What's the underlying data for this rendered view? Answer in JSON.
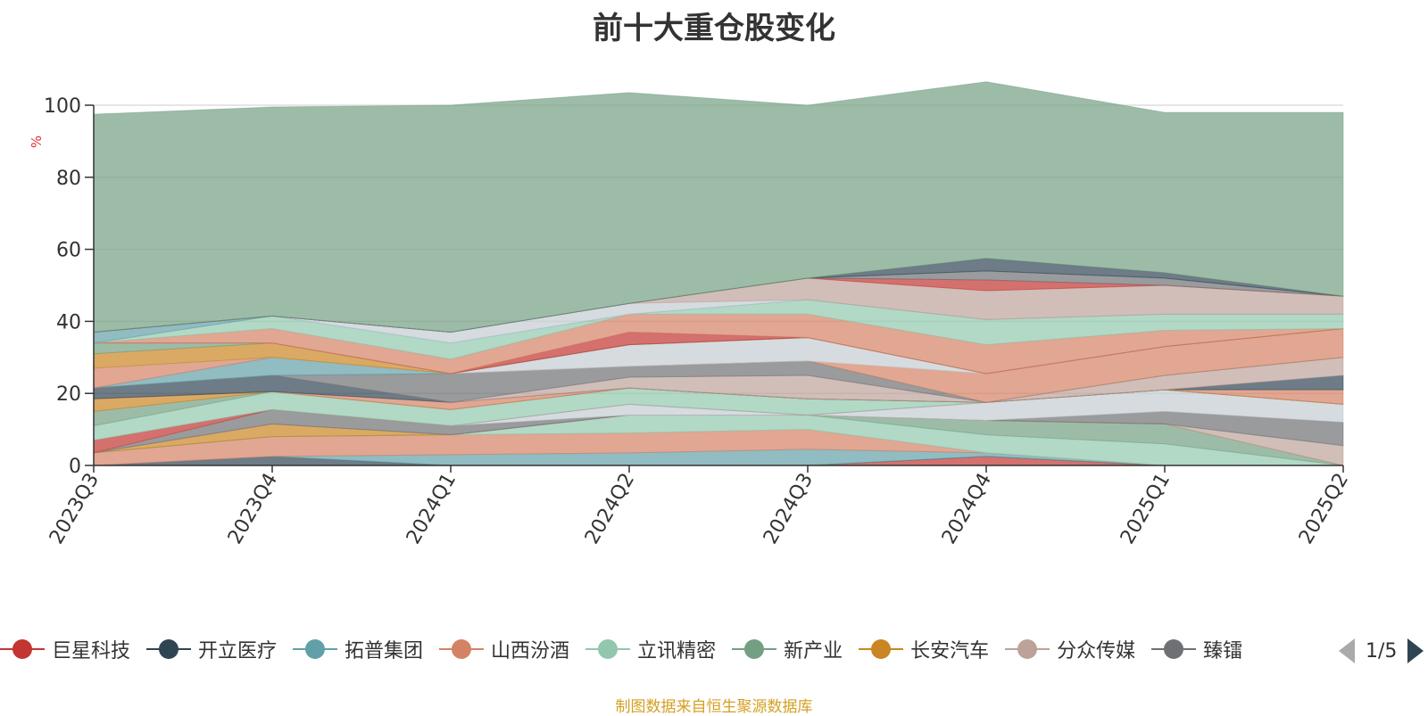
{
  "title": "前十大重仓股变化",
  "unit_label": "%",
  "footer": "制图数据来自恒生聚源数据库",
  "legend_page": "1/5",
  "legend": [
    {
      "name": "巨星科技",
      "color": "#c23531"
    },
    {
      "name": "开立医疗",
      "color": "#2f4554"
    },
    {
      "name": "拓普集团",
      "color": "#61a0a8"
    },
    {
      "name": "山西汾酒",
      "color": "#d48265"
    },
    {
      "name": "立讯精密",
      "color": "#91c7ae"
    },
    {
      "name": "新产业",
      "color": "#749f83"
    },
    {
      "name": "长安汽车",
      "color": "#ca8622"
    },
    {
      "name": "分众传媒",
      "color": "#bda29a"
    },
    {
      "name": "臻镭",
      "color": "#6e7074"
    }
  ],
  "chart_data": {
    "type": "area",
    "stacked": true,
    "x": [
      "2023Q3",
      "2023Q4",
      "2024Q1",
      "2024Q2",
      "2024Q3",
      "2024Q4",
      "2025Q1",
      "2025Q2"
    ],
    "ylim": [
      0,
      100
    ],
    "yticks": [
      0,
      20,
      40,
      60,
      80,
      100
    ],
    "grid": true,
    "series": [
      {
        "color": "#c23531",
        "values": [
          0,
          0,
          0,
          0,
          0,
          2.5,
          0,
          0
        ]
      },
      {
        "color": "#2f4554",
        "values": [
          0,
          2.5,
          0,
          0,
          0,
          0,
          0,
          0
        ]
      },
      {
        "color": "#61a0a8",
        "values": [
          0,
          0,
          3,
          3.5,
          4.5,
          1,
          0,
          0
        ]
      },
      {
        "color": "#d48265",
        "values": [
          3.5,
          5.5,
          5.5,
          5.5,
          5.5,
          0,
          0,
          0
        ]
      },
      {
        "color": "#91c7ae",
        "values": [
          0,
          0,
          0,
          5,
          4,
          5,
          6,
          0
        ]
      },
      {
        "color": "#749f83",
        "values": [
          0,
          0,
          0,
          0,
          0,
          4,
          5.5,
          0
        ]
      },
      {
        "color": "#ca8622",
        "values": [
          0,
          3.5,
          0,
          0,
          0,
          0,
          0,
          0
        ]
      },
      {
        "color": "#bda29a",
        "values": [
          0,
          0,
          0,
          0,
          0,
          0,
          0,
          5.5
        ]
      },
      {
        "color": "#6e7074",
        "values": [
          0,
          4,
          2.5,
          0,
          0,
          0,
          3.5,
          6.5
        ]
      },
      {
        "color": "#c4ccd3",
        "values": [
          0,
          0,
          0,
          3,
          0,
          5,
          6,
          5
        ]
      },
      {
        "color": "#c23531",
        "values": [
          3.5,
          0,
          0,
          0,
          0,
          0,
          0,
          0
        ]
      },
      {
        "color": "#91c7ae",
        "values": [
          4,
          5,
          4.5,
          4.5,
          4.5,
          0,
          0,
          0
        ]
      },
      {
        "color": "#749f83",
        "values": [
          4,
          0,
          0,
          0,
          0,
          0,
          0,
          0
        ]
      },
      {
        "color": "#ca8622",
        "values": [
          3.5,
          0,
          0,
          0,
          0,
          0,
          0,
          0
        ]
      },
      {
        "color": "#d48265",
        "values": [
          0,
          0,
          2,
          0,
          0,
          0,
          0,
          4
        ]
      },
      {
        "color": "#2f4554",
        "values": [
          3,
          4.5,
          0,
          0,
          0,
          0,
          0,
          4
        ]
      },
      {
        "color": "#bda29a",
        "values": [
          0,
          0,
          0,
          3,
          6.5,
          0,
          4,
          5
        ]
      },
      {
        "color": "#6e7074",
        "values": [
          0,
          0,
          8,
          3,
          4,
          0,
          0,
          0
        ]
      },
      {
        "color": "#61a0a8",
        "values": [
          0,
          5,
          0,
          0,
          0,
          0,
          0,
          0
        ]
      },
      {
        "color": "#d48265",
        "values": [
          5.5,
          0,
          0,
          0,
          0,
          8,
          8,
          8
        ]
      },
      {
        "color": "#c4ccd3",
        "values": [
          0,
          0,
          0,
          6,
          6.5,
          0,
          0,
          0
        ]
      },
      {
        "color": "#ca8622",
        "values": [
          4,
          4,
          0,
          0,
          0,
          0,
          0,
          0
        ]
      },
      {
        "color": "#749f83",
        "values": [
          3,
          0,
          0,
          0,
          0,
          0,
          0,
          0
        ]
      },
      {
        "color": "#c23531",
        "values": [
          0,
          0,
          0,
          3.5,
          0,
          0,
          0,
          0
        ]
      },
      {
        "color": "#d48265",
        "values": [
          0,
          4,
          4,
          5,
          6.5,
          8,
          4.5,
          0
        ]
      },
      {
        "color": "#91c7ae",
        "values": [
          0,
          3.5,
          4.5,
          0,
          4,
          7,
          4.5,
          4
        ]
      },
      {
        "color": "#61a0a8",
        "values": [
          3,
          0,
          0,
          0,
          0,
          0,
          0,
          0
        ]
      },
      {
        "color": "#c4ccd3",
        "values": [
          0,
          0,
          3,
          3,
          0,
          0,
          0,
          0
        ]
      },
      {
        "color": "#bda29a",
        "values": [
          0,
          0,
          0,
          0,
          6,
          8,
          8,
          5
        ]
      },
      {
        "color": "#c23531",
        "values": [
          0,
          0,
          0,
          0,
          0,
          3,
          0,
          0
        ]
      },
      {
        "color": "#6e7074",
        "values": [
          0,
          0,
          0,
          0,
          0,
          2.5,
          2,
          0
        ]
      },
      {
        "color": "#2f4554",
        "values": [
          0,
          0,
          0,
          0,
          0,
          3.5,
          1.5,
          0
        ]
      },
      {
        "color": "#749f83",
        "values": [
          60.5,
          58,
          63,
          58.5,
          48,
          49,
          44.5,
          51
        ]
      }
    ]
  }
}
